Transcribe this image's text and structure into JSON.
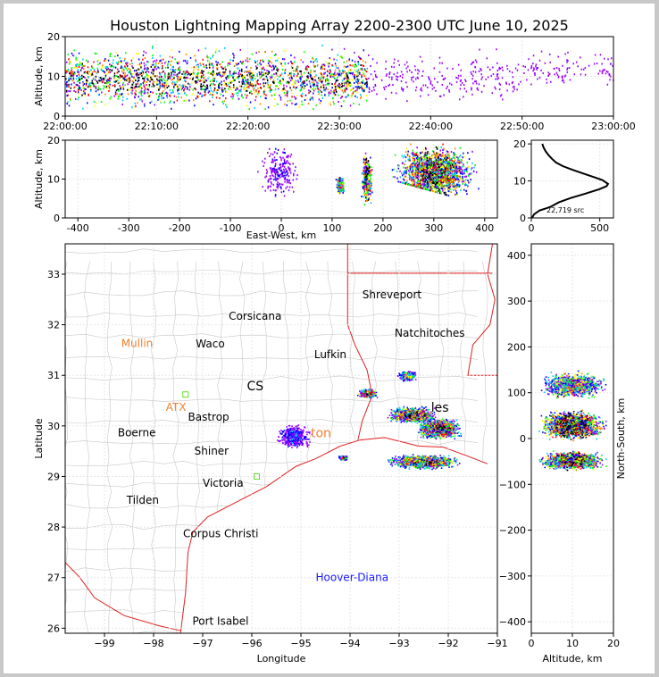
{
  "title": "Houston Lightning Mapping Array 2200-2300 UTC June 10, 2025",
  "colors": {
    "density": [
      "#9900ff",
      "#0000ff",
      "#00c8ff",
      "#00ff00",
      "#ffff00",
      "#ff8c00",
      "#ff0000",
      "#000000"
    ],
    "state_border": "#e02020",
    "county_border": "#c8c8c8",
    "coast": "#e02020",
    "highlight_city": "#f08030",
    "network_city": "#1a1aff",
    "station_marker": "#66dd22"
  },
  "chart_data": [
    {
      "id": "time_height",
      "type": "scatter",
      "title": "",
      "xlabel": "",
      "ylabel": "Altitude, km",
      "x_range": [
        "22:00:00",
        "23:00:00"
      ],
      "xticks": [
        "22:00:00",
        "22:10:00",
        "22:20:00",
        "22:30:00",
        "22:40:00",
        "22:50:00",
        "23:00:00"
      ],
      "ylim": [
        0,
        20
      ],
      "yticks": [
        0,
        10,
        20
      ],
      "grid": true,
      "clusters": [
        {
          "t_start": "22:00:00",
          "t_end": "22:33:00",
          "alt_min": 2,
          "alt_max": 20,
          "alt_core": 9.5,
          "density": 0.8
        },
        {
          "t_start": "22:33:00",
          "t_end": "22:50:00",
          "alt_min": 4,
          "alt_max": 20,
          "alt_core": 10,
          "density": 0.08
        },
        {
          "t_start": "22:50:00",
          "t_end": "23:00:00",
          "alt_min": 8,
          "alt_max": 20,
          "alt_core": 12,
          "density": 0.03
        }
      ]
    },
    {
      "id": "ew_altitude",
      "type": "scatter",
      "title": "",
      "xlabel": "East-West, km",
      "ylabel": "Altitude, km",
      "xlim": [
        -425,
        425
      ],
      "xticks": [
        -400,
        -300,
        -200,
        -100,
        0,
        100,
        200,
        300,
        400
      ],
      "ylim": [
        0,
        20
      ],
      "yticks": [
        0,
        10,
        20
      ],
      "grid": true,
      "clusters": [
        {
          "x_min": -50,
          "x_max": 40,
          "alt_min": 4,
          "alt_max": 20,
          "density": 0.15
        },
        {
          "x_min": 105,
          "x_max": 125,
          "alt_min": 6,
          "alt_max": 11,
          "density": 0.7
        },
        {
          "x_min": 155,
          "x_max": 180,
          "alt_min": 3,
          "alt_max": 18,
          "density": 0.9
        },
        {
          "x_min": 210,
          "x_max": 390,
          "alt_min": 4,
          "alt_max": 20,
          "density": 0.85
        }
      ]
    },
    {
      "id": "altitude_histogram",
      "type": "line",
      "title": "",
      "annotation": "22,719 src",
      "xlim": [
        0,
        600
      ],
      "xticks": [
        0,
        500
      ],
      "ylim": [
        0,
        21
      ],
      "yticks": [
        0,
        10,
        20
      ],
      "grid": true,
      "points": [
        [
          5,
          0
        ],
        [
          20,
          1
        ],
        [
          60,
          2
        ],
        [
          110,
          2.6
        ],
        [
          140,
          3
        ],
        [
          200,
          4.2
        ],
        [
          290,
          5.4
        ],
        [
          390,
          6.5
        ],
        [
          500,
          7.8
        ],
        [
          550,
          8.6
        ],
        [
          560,
          9.2
        ],
        [
          520,
          10.2
        ],
        [
          460,
          11
        ],
        [
          380,
          12
        ],
        [
          300,
          13
        ],
        [
          230,
          14
        ],
        [
          180,
          15
        ],
        [
          150,
          16
        ],
        [
          125,
          17
        ],
        [
          105,
          18
        ],
        [
          90,
          19
        ],
        [
          80,
          20
        ]
      ]
    },
    {
      "id": "plan_view",
      "type": "scatter",
      "title": "",
      "xlabel": "Longitude",
      "ylabel": "Latitude",
      "xlim": [
        -99.8,
        -91
      ],
      "xticks": [
        -99,
        -98,
        -97,
        -96,
        -95,
        -94,
        -93,
        -92,
        -91
      ],
      "ylim": [
        25.9,
        33.6
      ],
      "yticks": [
        26,
        27,
        28,
        29,
        30,
        31,
        32,
        33
      ],
      "grid": true,
      "clusters": [
        {
          "lon": -93.65,
          "lat": 30.65,
          "rx": 0.22,
          "ry": 0.1,
          "density": 1
        },
        {
          "lon": -92.85,
          "lat": 31.0,
          "rx": 0.2,
          "ry": 0.12,
          "density": 0.6
        },
        {
          "lon": -92.75,
          "lat": 30.23,
          "rx": 0.55,
          "ry": 0.17,
          "density": 1
        },
        {
          "lon": -92.2,
          "lat": 29.95,
          "rx": 0.5,
          "ry": 0.22,
          "density": 1
        },
        {
          "lon": -92.5,
          "lat": 29.3,
          "rx": 0.8,
          "ry": 0.15,
          "density": 0.9
        },
        {
          "lon": -95.15,
          "lat": 29.8,
          "rx": 0.4,
          "ry": 0.28,
          "density": 0.25
        },
        {
          "lon": -94.15,
          "lat": 29.38,
          "rx": 0.12,
          "ry": 0.05,
          "density": 0.7
        }
      ],
      "cities": [
        {
          "name": "Shreveport",
          "lon": -93.75,
          "lat": 32.52,
          "style": "normal"
        },
        {
          "name": "Corsicana",
          "lon": -96.47,
          "lat": 32.1,
          "style": "normal"
        },
        {
          "name": "Natchitoches",
          "lon": -93.09,
          "lat": 31.76,
          "style": "normal"
        },
        {
          "name": "Mullin",
          "lon": -98.66,
          "lat": 31.56,
          "style": "highlight"
        },
        {
          "name": "Waco",
          "lon": -97.14,
          "lat": 31.55,
          "style": "normal"
        },
        {
          "name": "Lufkin",
          "lon": -94.73,
          "lat": 31.34,
          "style": "normal"
        },
        {
          "name": "ATX",
          "lon": -97.75,
          "lat": 30.3,
          "style": "highlight"
        },
        {
          "name": "Bastrop",
          "lon": -97.3,
          "lat": 30.1,
          "style": "normal"
        },
        {
          "name": "Boerne",
          "lon": -98.73,
          "lat": 29.79,
          "style": "normal"
        },
        {
          "name": "Shiner",
          "lon": -97.17,
          "lat": 29.43,
          "style": "normal"
        },
        {
          "name": "Victoria",
          "lon": -97.0,
          "lat": 28.8,
          "style": "normal"
        },
        {
          "name": "Tilden",
          "lon": -98.55,
          "lat": 28.46,
          "style": "normal"
        },
        {
          "name": "Corpus Christi",
          "lon": -97.4,
          "lat": 27.8,
          "style": "normal"
        },
        {
          "name": "Hoover-Diana",
          "lon": -94.7,
          "lat": 26.93,
          "style": "network"
        },
        {
          "name": "Port Isabel",
          "lon": -97.21,
          "lat": 26.07,
          "style": "normal"
        }
      ],
      "partial_labels": [
        {
          "text": "CS",
          "lon": -96.1,
          "lat": 30.7,
          "style": "normal"
        },
        {
          "text": "les",
          "lon": -92.35,
          "lat": 30.28,
          "style": "normal"
        },
        {
          "text": "ton",
          "lon": -94.8,
          "lat": 29.78,
          "style": "highlight"
        }
      ],
      "stations": [
        {
          "lon": -97.35,
          "lat": 30.62
        },
        {
          "lon": -95.9,
          "lat": 29.0
        }
      ]
    },
    {
      "id": "ns_altitude",
      "type": "scatter",
      "title": "",
      "xlabel": "Altitude, km",
      "ylabel": "North-South, km",
      "xlim": [
        0,
        20
      ],
      "xticks": [
        0,
        10,
        20
      ],
      "ylim": [
        -425,
        425
      ],
      "yticks": [
        -400,
        -300,
        -200,
        -100,
        0,
        100,
        200,
        300,
        400
      ],
      "grid": true,
      "clusters": [
        {
          "y_min": 85,
          "y_max": 150,
          "alt_min": 2,
          "alt_max": 20,
          "density": 0.6
        },
        {
          "y_min": -5,
          "y_max": 65,
          "alt_min": 2,
          "alt_max": 20,
          "density": 1
        },
        {
          "y_min": -70,
          "y_max": -25,
          "alt_min": 2,
          "alt_max": 20,
          "density": 0.85
        }
      ]
    }
  ]
}
